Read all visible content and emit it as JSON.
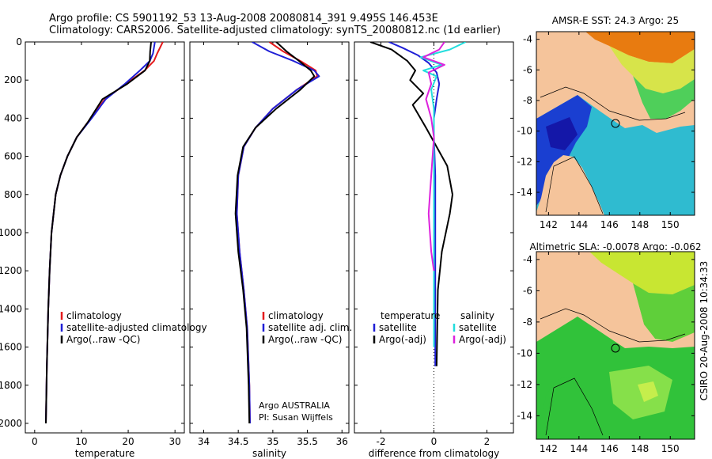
{
  "header": {
    "line1": "Argo profile: CS 5901192_53 13-Aug-2008 20080814_391 9.495S 146.453E",
    "line2": "Climatology: CARS2006. Satellite-adjusted climatology: synTS_20080812.nc (1d earlier)"
  },
  "side_note": "CSIRO 20-Aug-2008 10:34:33",
  "colors": {
    "climatology": "#e41a1c",
    "satellite": "#1f1fd6",
    "argo": "#000000",
    "salinity_satellite": "#22dddd",
    "salinity_argo": "#dd22dd",
    "land": "#f5c49b"
  },
  "chart_data": [
    {
      "type": "line",
      "xlabel": "temperature",
      "xlim": [
        -2,
        32
      ],
      "xticks": [
        0,
        10,
        20,
        30
      ],
      "ylim": [
        2050,
        0
      ],
      "yticks": [
        0,
        200,
        400,
        600,
        800,
        1000,
        1200,
        1400,
        1600,
        1800,
        2000
      ],
      "legend": [
        "climatology",
        "satellite-adjusted climatology",
        "Argo(..raw -QC)"
      ],
      "series": [
        {
          "name": "climatology",
          "color": "#e41a1c",
          "x": [
            27.4,
            26.2,
            25.5,
            23.5,
            19.5,
            15.0,
            12.0,
            9.0,
            7.0,
            5.5,
            4.5,
            3.6,
            3.2,
            2.9,
            2.6,
            2.4
          ],
          "y": [
            0,
            60,
            100,
            150,
            220,
            300,
            400,
            500,
            600,
            700,
            800,
            1000,
            1200,
            1400,
            1700,
            2000
          ]
        },
        {
          "name": "satellite-adjusted climatology",
          "color": "#1f1fd6",
          "x": [
            25.7,
            25.3,
            24.6,
            22.5,
            19.3,
            15.2,
            12.2,
            9.0,
            7.0,
            5.5,
            4.5,
            3.6,
            3.2,
            2.9,
            2.6,
            2.4
          ],
          "y": [
            0,
            60,
            100,
            150,
            220,
            300,
            400,
            500,
            600,
            700,
            800,
            1000,
            1200,
            1400,
            1700,
            2000
          ]
        },
        {
          "name": "Argo(..raw -QC)",
          "color": "#000000",
          "x": [
            24.9,
            24.7,
            24.6,
            23.6,
            19.8,
            14.5,
            11.4,
            9.0,
            7.0,
            5.5,
            4.5,
            3.6,
            3.2,
            2.9,
            2.6,
            2.4
          ],
          "y": [
            0,
            50,
            100,
            150,
            220,
            300,
            420,
            500,
            600,
            700,
            800,
            1000,
            1200,
            1400,
            1700,
            2000
          ]
        }
      ]
    },
    {
      "type": "line",
      "xlabel": "salinity",
      "xlim": [
        33.8,
        36.1
      ],
      "xticks": [
        34,
        34.5,
        35,
        35.5,
        36
      ],
      "ylim": [
        2050,
        0
      ],
      "legend": [
        "climatology",
        "satellite adj. clim.",
        "Argo(..raw -QC)"
      ],
      "annotation": [
        "Argo AUSTRALIA",
        "PI: Susan Wijffels"
      ],
      "series": [
        {
          "name": "climatology",
          "color": "#e41a1c",
          "x": [
            34.95,
            35.15,
            35.4,
            35.62,
            35.64,
            35.35,
            35.0,
            34.75,
            34.58,
            34.5,
            34.48,
            34.52,
            34.58,
            34.63,
            34.66,
            34.67
          ],
          "y": [
            0,
            50,
            100,
            150,
            180,
            250,
            350,
            450,
            550,
            700,
            900,
            1100,
            1300,
            1500,
            1800,
            2000
          ]
        },
        {
          "name": "satellite adj. clim.",
          "color": "#1f1fd6",
          "x": [
            34.7,
            34.95,
            35.3,
            35.6,
            35.67,
            35.35,
            35.0,
            34.75,
            34.58,
            34.5,
            34.48,
            34.52,
            34.58,
            34.63,
            34.66,
            34.67
          ],
          "y": [
            0,
            50,
            100,
            150,
            180,
            250,
            350,
            450,
            550,
            700,
            900,
            1100,
            1300,
            1500,
            1800,
            2000
          ]
        },
        {
          "name": "Argo(..raw -QC)",
          "color": "#000000",
          "x": [
            35.05,
            35.2,
            35.38,
            35.55,
            35.6,
            35.4,
            35.05,
            34.75,
            34.57,
            34.49,
            34.46,
            34.5,
            34.57,
            34.62,
            34.65,
            34.66
          ],
          "y": [
            0,
            50,
            100,
            150,
            180,
            250,
            350,
            450,
            550,
            700,
            900,
            1100,
            1300,
            1500,
            1800,
            2000
          ]
        }
      ]
    },
    {
      "type": "line",
      "xlabel": "difference from climatology",
      "xlim": [
        -3,
        3
      ],
      "xticks": [
        -2,
        0,
        2
      ],
      "ylim": [
        2050,
        0
      ],
      "legend_title_left": "temperature",
      "legend_title_right": "salinity",
      "legend": [
        "satellite",
        "Argo(-adj)",
        "satellite",
        "Argo(-adj)"
      ],
      "series": [
        {
          "name": "satellite",
          "group": "temperature",
          "color": "#1f1fd6",
          "x": [
            -1.7,
            -1.2,
            -0.6,
            -0.2,
            0.1,
            0.2,
            0.1,
            0.0,
            0.0,
            0.05,
            0.05,
            0.05,
            0.05,
            0.05,
            0.05
          ],
          "y": [
            0,
            30,
            70,
            110,
            160,
            220,
            300,
            400,
            500,
            700,
            900,
            1100,
            1300,
            1500,
            1700
          ]
        },
        {
          "name": "Argo(-adj)",
          "group": "temperature",
          "color": "#000000",
          "x": [
            -2.4,
            -1.6,
            -1.0,
            -0.7,
            -0.9,
            -0.4,
            -0.8,
            -0.3,
            0.1,
            0.5,
            0.7,
            0.6,
            0.3,
            0.15,
            0.1
          ],
          "y": [
            0,
            40,
            100,
            150,
            200,
            270,
            330,
            450,
            550,
            650,
            800,
            900,
            1100,
            1300,
            1700
          ]
        },
        {
          "name": "satellite",
          "group": "salinity",
          "color": "#22dddd",
          "x": [
            1.2,
            0.6,
            -0.5,
            0.3,
            -0.4,
            0.1,
            -0.1,
            0.0,
            0.0,
            0.0,
            0.0,
            0.0,
            0.0,
            0.0
          ],
          "y": [
            0,
            40,
            80,
            120,
            150,
            180,
            250,
            350,
            450,
            600,
            800,
            1000,
            1300,
            1600
          ]
        },
        {
          "name": "Argo(-adj)",
          "group": "salinity",
          "color": "#dd22dd",
          "x": [
            0.4,
            0.2,
            -0.4,
            0.4,
            -0.2,
            -0.1,
            -0.3,
            -0.1,
            0.0,
            -0.1,
            -0.2,
            -0.1,
            0.0
          ],
          "y": [
            0,
            40,
            80,
            120,
            160,
            220,
            300,
            400,
            500,
            700,
            900,
            1100,
            1200
          ]
        }
      ]
    },
    {
      "type": "heatmap",
      "title": "AMSR-E SST: 24.3 Argo: 25",
      "xlim": [
        141.2,
        151.6
      ],
      "ylim": [
        -15.5,
        -3.5
      ],
      "xticks": [
        142,
        144,
        146,
        148,
        150
      ],
      "yticks": [
        -4,
        -6,
        -8,
        -10,
        -12,
        -14
      ],
      "profile_marker": {
        "lon": 146.453,
        "lat": -9.495
      }
    },
    {
      "type": "heatmap",
      "title": "Altimetric SLA: -0.0078 Argo: -0.062",
      "xlim": [
        141.2,
        151.6
      ],
      "ylim": [
        -15.5,
        -3.5
      ],
      "xticks": [
        142,
        144,
        146,
        148,
        150
      ],
      "yticks": [
        -4,
        -6,
        -8,
        -10,
        -12,
        -14
      ],
      "profile_marker": {
        "lon": 146.453,
        "lat": -9.495
      }
    }
  ]
}
